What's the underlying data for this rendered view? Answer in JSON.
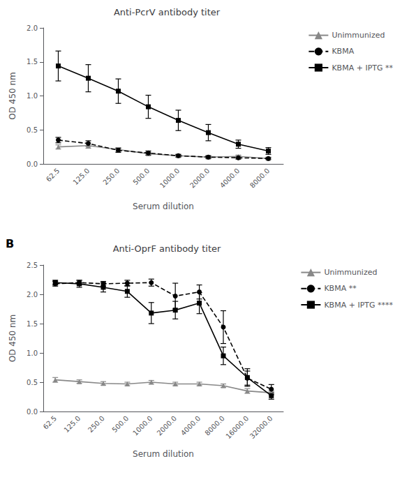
{
  "chart_data": [
    {
      "type": "line",
      "title": "Anti-PcrV antibody titer",
      "x_label": "Serum dilution",
      "y_label": "OD 450 nm",
      "categories": [
        "62.5",
        "125.0",
        "250.0",
        "500.0",
        "1000.0",
        "2000.0",
        "4000.0",
        "8000.0"
      ],
      "ylim": [
        0,
        2.0
      ],
      "yticks": [
        {
          "value": 0,
          "label": "0.0"
        },
        0.5,
        {
          "value": 1,
          "label": "1.0"
        },
        1.5,
        {
          "value": 2,
          "label": "2.0"
        }
      ],
      "grid": false,
      "legend": "right",
      "series": [
        {
          "name": "Unimmunized",
          "color": "#888888",
          "marker": "triangle",
          "line_style": "solid",
          "values": [
            0.25,
            0.27,
            0.21,
            0.15,
            0.12,
            0.1,
            0.11,
            0.08
          ],
          "errors": [
            0.03,
            0.04,
            0.03,
            0.02,
            0.02,
            0.02,
            0.02,
            0.02
          ]
        },
        {
          "name": "KBMA",
          "color": "#000000",
          "marker": "circle",
          "line_style": "dashed",
          "values": [
            0.35,
            0.3,
            0.2,
            0.16,
            0.12,
            0.1,
            0.09,
            0.08
          ],
          "errors": [
            0.04,
            0.04,
            0.03,
            0.03,
            0.02,
            0.02,
            0.02,
            0.01
          ]
        },
        {
          "name": "KBMA + IPTG **",
          "color": "#000000",
          "marker": "square",
          "line_style": "solid",
          "values": [
            1.44,
            1.26,
            1.07,
            0.84,
            0.64,
            0.46,
            0.29,
            0.19
          ],
          "errors": [
            0.22,
            0.2,
            0.18,
            0.17,
            0.15,
            0.12,
            0.06,
            0.05
          ]
        }
      ]
    },
    {
      "type": "line",
      "title": "Anti-OprF antibody titer",
      "x_label": "Serum dilution",
      "y_label": "OD 450 nm",
      "annotations": [
        "B"
      ],
      "categories": [
        "62.5",
        "125.0",
        "250.0",
        "500.0",
        "1000.0",
        "2000.0",
        "4000.0",
        "8000.0",
        "16000.0",
        "32000.0"
      ],
      "ylim": [
        0,
        2.5
      ],
      "yticks": [
        {
          "value": 0,
          "label": "0.0"
        },
        0.5,
        {
          "value": 1,
          "label": "1.0"
        },
        1.5,
        {
          "value": 2,
          "label": "2.0"
        },
        2.5
      ],
      "grid": false,
      "legend": "right",
      "series": [
        {
          "name": "Unimmunized",
          "color": "#888888",
          "marker": "triangle",
          "line_style": "solid",
          "values": [
            0.54,
            0.51,
            0.48,
            0.47,
            0.5,
            0.47,
            0.47,
            0.44,
            0.35,
            0.32
          ],
          "errors": [
            0.04,
            0.03,
            0.03,
            0.03,
            0.03,
            0.03,
            0.03,
            0.03,
            0.04,
            0.04
          ]
        },
        {
          "name": "KBMA **",
          "color": "#000000",
          "marker": "circle",
          "line_style": "dashed",
          "values": [
            2.18,
            2.2,
            2.18,
            2.19,
            2.2,
            1.97,
            2.04,
            1.44,
            0.57,
            0.38
          ],
          "errors": [
            0.04,
            0.04,
            0.04,
            0.05,
            0.06,
            0.22,
            0.12,
            0.28,
            0.12,
            0.08
          ]
        },
        {
          "name": "KBMA + IPTG ****",
          "color": "#000000",
          "marker": "square",
          "line_style": "solid",
          "values": [
            2.2,
            2.18,
            2.12,
            2.05,
            1.68,
            1.73,
            1.85,
            0.95,
            0.58,
            0.27
          ],
          "errors": [
            0.04,
            0.06,
            0.08,
            0.1,
            0.18,
            0.15,
            0.18,
            0.15,
            0.15,
            0.06
          ]
        }
      ]
    }
  ]
}
